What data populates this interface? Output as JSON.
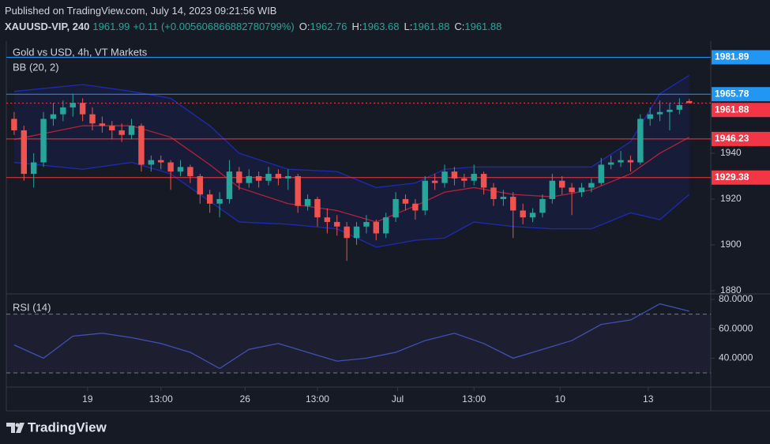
{
  "header": {
    "published": "Published on TradingView.com, July 14, 2023 09:21:56 WIB",
    "symbol": "XAUUSD-VIP, 240",
    "last": 1961.99,
    "change": "+0.11 (+0.005606866882780799%)",
    "open_label": "O:",
    "open": 1962.76,
    "high_label": "H:",
    "high": 1963.68,
    "low_label": "L:",
    "low": 1961.88,
    "close_label": "C:",
    "close": 1961.88
  },
  "footer": {
    "brand": "TradingView"
  },
  "chart_data": [
    {
      "type": "candlestick",
      "title": "Gold vs USD, 4h, VT Markets",
      "indicator": "BB (20, 2)",
      "up_color": "#26a69a",
      "down_color": "#ef5350",
      "candles": [
        [
          1955,
          1958,
          1948,
          1950
        ],
        [
          1950,
          1952,
          1928,
          1931
        ],
        [
          1931,
          1940,
          1925,
          1936
        ],
        [
          1936,
          1958,
          1934,
          1955
        ],
        [
          1955,
          1962,
          1952,
          1957
        ],
        [
          1957,
          1963,
          1954,
          1960
        ],
        [
          1960,
          1966,
          1956,
          1962
        ],
        [
          1962,
          1964,
          1954,
          1957
        ],
        [
          1957,
          1960,
          1950,
          1953
        ],
        [
          1953,
          1956,
          1949,
          1952
        ],
        [
          1952,
          1954,
          1946,
          1950
        ],
        [
          1950,
          1953,
          1945,
          1948
        ],
        [
          1948,
          1955,
          1946,
          1952
        ],
        [
          1952,
          1953,
          1932,
          1935
        ],
        [
          1935,
          1939,
          1932,
          1937
        ],
        [
          1937,
          1939,
          1933,
          1936
        ],
        [
          1936,
          1937,
          1924,
          1932
        ],
        [
          1932,
          1937,
          1930,
          1934
        ],
        [
          1934,
          1935,
          1927,
          1930
        ],
        [
          1930,
          1931,
          1918,
          1922
        ],
        [
          1922,
          1924,
          1914,
          1918
        ],
        [
          1918,
          1923,
          1912,
          1920
        ],
        [
          1920,
          1937,
          1918,
          1932
        ],
        [
          1932,
          1934,
          1924,
          1927
        ],
        [
          1927,
          1933,
          1925,
          1930
        ],
        [
          1930,
          1932,
          1925,
          1928
        ],
        [
          1928,
          1934,
          1926,
          1931
        ],
        [
          1931,
          1933,
          1926,
          1929
        ],
        [
          1929,
          1933,
          1924,
          1930
        ],
        [
          1930,
          1931,
          1914,
          1917
        ],
        [
          1917,
          1922,
          1915,
          1920
        ],
        [
          1920,
          1921,
          1908,
          1912
        ],
        [
          1912,
          1916,
          1905,
          1910
        ],
        [
          1910,
          1913,
          1904,
          1908
        ],
        [
          1908,
          1910,
          1893,
          1903
        ],
        [
          1903,
          1910,
          1900,
          1908
        ],
        [
          1908,
          1913,
          1905,
          1910
        ],
        [
          1910,
          1911,
          1902,
          1905
        ],
        [
          1905,
          1914,
          1903,
          1912
        ],
        [
          1912,
          1923,
          1910,
          1920
        ],
        [
          1920,
          1922,
          1915,
          1918
        ],
        [
          1918,
          1920,
          1911,
          1915
        ],
        [
          1915,
          1930,
          1913,
          1928
        ],
        [
          1928,
          1931,
          1924,
          1927
        ],
        [
          1927,
          1935,
          1925,
          1932
        ],
        [
          1932,
          1934,
          1926,
          1929
        ],
        [
          1929,
          1931,
          1925,
          1928
        ],
        [
          1928,
          1935,
          1926,
          1931
        ],
        [
          1931,
          1932,
          1922,
          1925
        ],
        [
          1925,
          1927,
          1917,
          1920
        ],
        [
          1920,
          1924,
          1917,
          1921
        ],
        [
          1921,
          1923,
          1903,
          1915
        ],
        [
          1915,
          1918,
          1909,
          1912
        ],
        [
          1912,
          1916,
          1910,
          1914
        ],
        [
          1914,
          1922,
          1912,
          1920
        ],
        [
          1920,
          1931,
          1918,
          1928
        ],
        [
          1928,
          1930,
          1922,
          1925
        ],
        [
          1925,
          1927,
          1913,
          1923
        ],
        [
          1923,
          1927,
          1921,
          1925
        ],
        [
          1925,
          1929,
          1923,
          1927
        ],
        [
          1927,
          1938,
          1926,
          1935
        ],
        [
          1935,
          1939,
          1933,
          1936
        ],
        [
          1936,
          1941,
          1934,
          1937
        ],
        [
          1937,
          1939,
          1932,
          1936
        ],
        [
          1936,
          1957,
          1935,
          1955
        ],
        [
          1955,
          1960,
          1952,
          1957
        ],
        [
          1957,
          1963,
          1954,
          1958
        ],
        [
          1958,
          1962,
          1950,
          1959
        ],
        [
          1959,
          1964,
          1957,
          1961
        ],
        [
          1962.76,
          1963.68,
          1961.88,
          1961.88
        ]
      ],
      "bands": {
        "x": [
          0,
          7,
          12,
          16,
          20,
          23,
          28,
          33,
          37,
          41,
          44,
          47,
          51,
          55,
          59,
          63,
          66,
          69
        ],
        "upper": [
          1967,
          1970,
          1967,
          1964,
          1952,
          1940,
          1933,
          1932,
          1925,
          1927,
          1933,
          1934,
          1934,
          1934,
          1934,
          1945,
          1966,
          1974
        ],
        "basis": [
          1946,
          1952,
          1952,
          1947,
          1935,
          1925,
          1918,
          1915,
          1910,
          1917,
          1923,
          1925,
          1922,
          1921,
          1924,
          1931,
          1940,
          1947
        ],
        "lower": [
          1936,
          1933,
          1936,
          1931,
          1919,
          1910,
          1909,
          1907,
          1899,
          1902,
          1903,
          1910,
          1908,
          1907,
          1907,
          1914,
          1911,
          1922
        ],
        "band_color": "#1e2bb8",
        "basis_color": "#b2233a"
      },
      "price_lines": [
        {
          "value": 1981.89,
          "color": "#2196f3"
        },
        {
          "value": 1965.78,
          "color": "#2196f3"
        },
        {
          "value": 1961.88,
          "color": "#f23645",
          "dotted": true
        },
        {
          "value": 1946.23,
          "color": "#f23645"
        },
        {
          "value": 1929.38,
          "color": "#f23645"
        }
      ],
      "ylim": [
        1878.6,
        1986.2
      ],
      "yticks": [
        1940,
        1920,
        1900,
        1880
      ],
      "xlim": [
        -0.8,
        71.2
      ],
      "xticks": [
        {
          "value": 7.5,
          "label": "19"
        },
        {
          "value": 15,
          "label": "13:00"
        },
        {
          "value": 23.6,
          "label": "26"
        },
        {
          "value": 31,
          "label": "13:00"
        },
        {
          "value": 39.2,
          "label": "Jul"
        },
        {
          "value": 47,
          "label": "13:00"
        },
        {
          "value": 55.8,
          "label": "10"
        },
        {
          "value": 64.8,
          "label": "13"
        }
      ]
    },
    {
      "type": "line",
      "title": "RSI (14)",
      "color": "#3f51b5",
      "x": [
        0,
        3,
        6,
        9,
        12,
        15,
        18,
        21,
        24,
        27,
        30,
        33,
        36,
        39,
        42,
        45,
        48,
        51,
        54,
        57,
        60,
        63,
        66,
        69
      ],
      "values": [
        49,
        40,
        55,
        57,
        54,
        50,
        44,
        33,
        46,
        50,
        44,
        38,
        40,
        44,
        52,
        57,
        50,
        40,
        46,
        52,
        63,
        66,
        77,
        72
      ],
      "levels": [
        70,
        30
      ],
      "ylim": [
        20.3,
        82.7
      ],
      "yticks": [
        {
          "value": 80,
          "label": "80.0000"
        },
        {
          "value": 60,
          "label": "60.0000"
        },
        {
          "value": 40,
          "label": "40.0000"
        }
      ]
    }
  ]
}
